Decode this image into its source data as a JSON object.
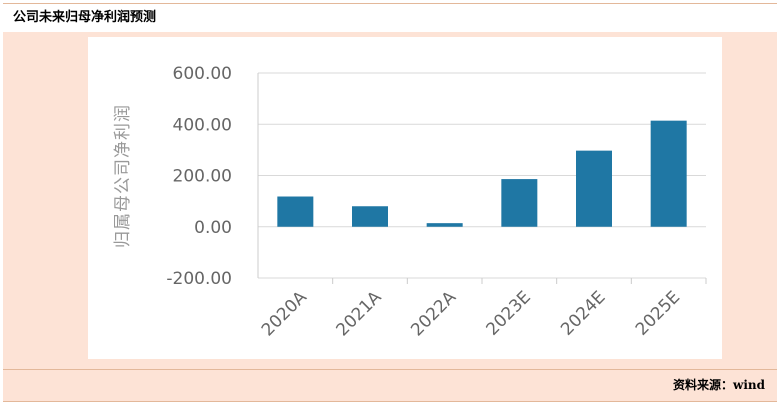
{
  "header": {
    "title": "公司未来归母净利润预测"
  },
  "footer": {
    "source": "资料来源：wind"
  },
  "chart_data": {
    "type": "bar",
    "categories": [
      "2020A",
      "2021A",
      "2022A",
      "2023E",
      "2024E",
      "2025E"
    ],
    "values": [
      118,
      80,
      14,
      186,
      297,
      414
    ],
    "ylabel": "归属母公司净利润",
    "ylim": [
      -200,
      600
    ],
    "yticks": [
      -200,
      0,
      200,
      400,
      600
    ],
    "ytick_labels": [
      "-200.00",
      "0.00",
      "200.00",
      "400.00",
      "600.00"
    ],
    "bar_color": "#1f77a4",
    "grid": true
  }
}
